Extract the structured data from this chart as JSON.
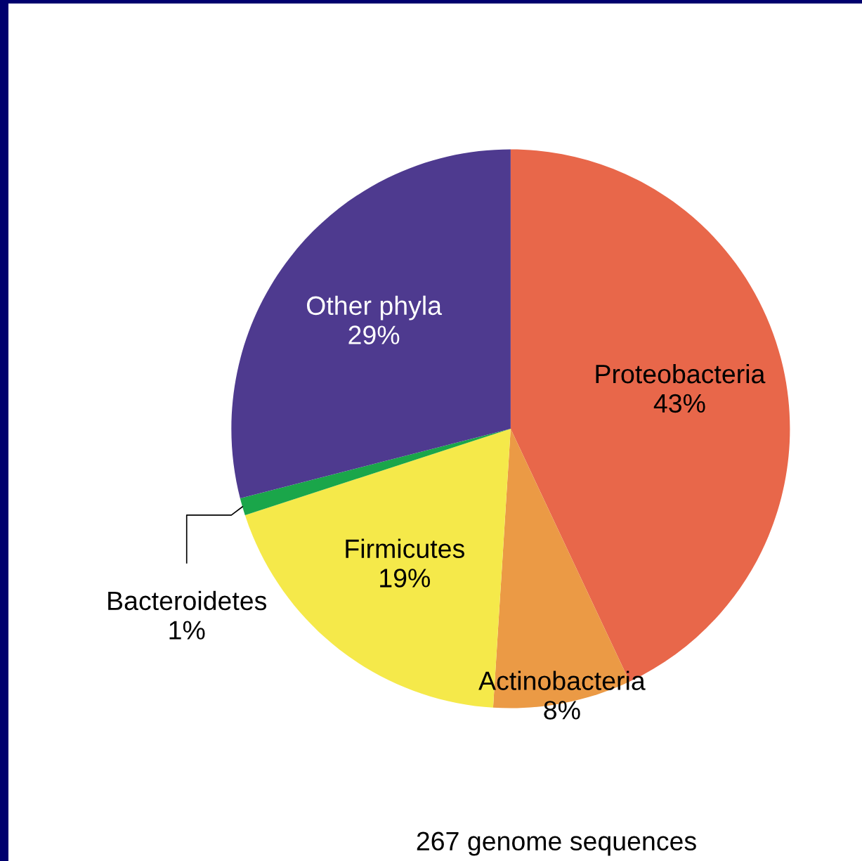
{
  "chart_data": {
    "type": "pie",
    "categories": [
      "Proteobacteria",
      "Actinobacteria",
      "Firmicutes",
      "Bacteroidetes",
      "Other phyla"
    ],
    "values": [
      43,
      8,
      19,
      1,
      29
    ],
    "value_labels": [
      "43%",
      "8%",
      "19%",
      "1%",
      "29%"
    ],
    "colors": [
      "#e8674a",
      "#eb9a45",
      "#f5e94a",
      "#1aa64a",
      "#4e3a8f"
    ],
    "annotations": [
      "267 genome sequences"
    ]
  }
}
